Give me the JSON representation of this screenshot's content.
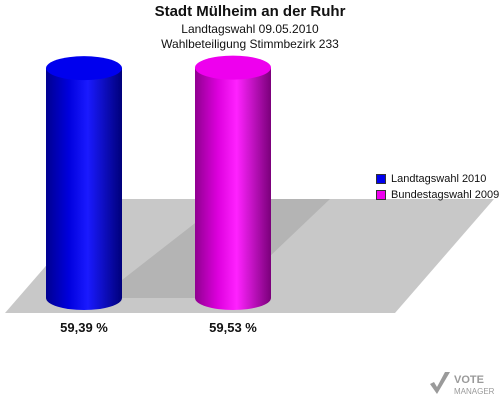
{
  "header": {
    "title": "Stadt Mülheim an der Ruhr",
    "subtitle": "Landtagswahl 09.05.2010",
    "subtitle2": "Wahlbeteiligung Stimmbezirk 233"
  },
  "logo": {
    "text": "VOTE MANAGER",
    "line1": "VOTE",
    "line2": "MANAGER"
  },
  "chart_data": {
    "type": "bar",
    "title": "Stadt Mülheim an der Ruhr",
    "subtitle": "Landtagswahl 09.05.2010 / Wahlbeteiligung Stimmbezirk 233",
    "categories": [
      "Landtagswahl 2010",
      "Bundestagswahl 2009"
    ],
    "values": [
      59.39,
      59.53
    ],
    "value_labels": [
      "59,39 %",
      "59,53 %"
    ],
    "colors": [
      "#0000ee",
      "#ee00ee"
    ],
    "legend": [
      {
        "label": "Landtagswahl 2010",
        "color": "#0000ee"
      },
      {
        "label": "Bundestagswahl 2009",
        "color": "#ee00ee"
      }
    ],
    "legend_position": "right",
    "grid": false,
    "style": "3d-cylinder"
  }
}
